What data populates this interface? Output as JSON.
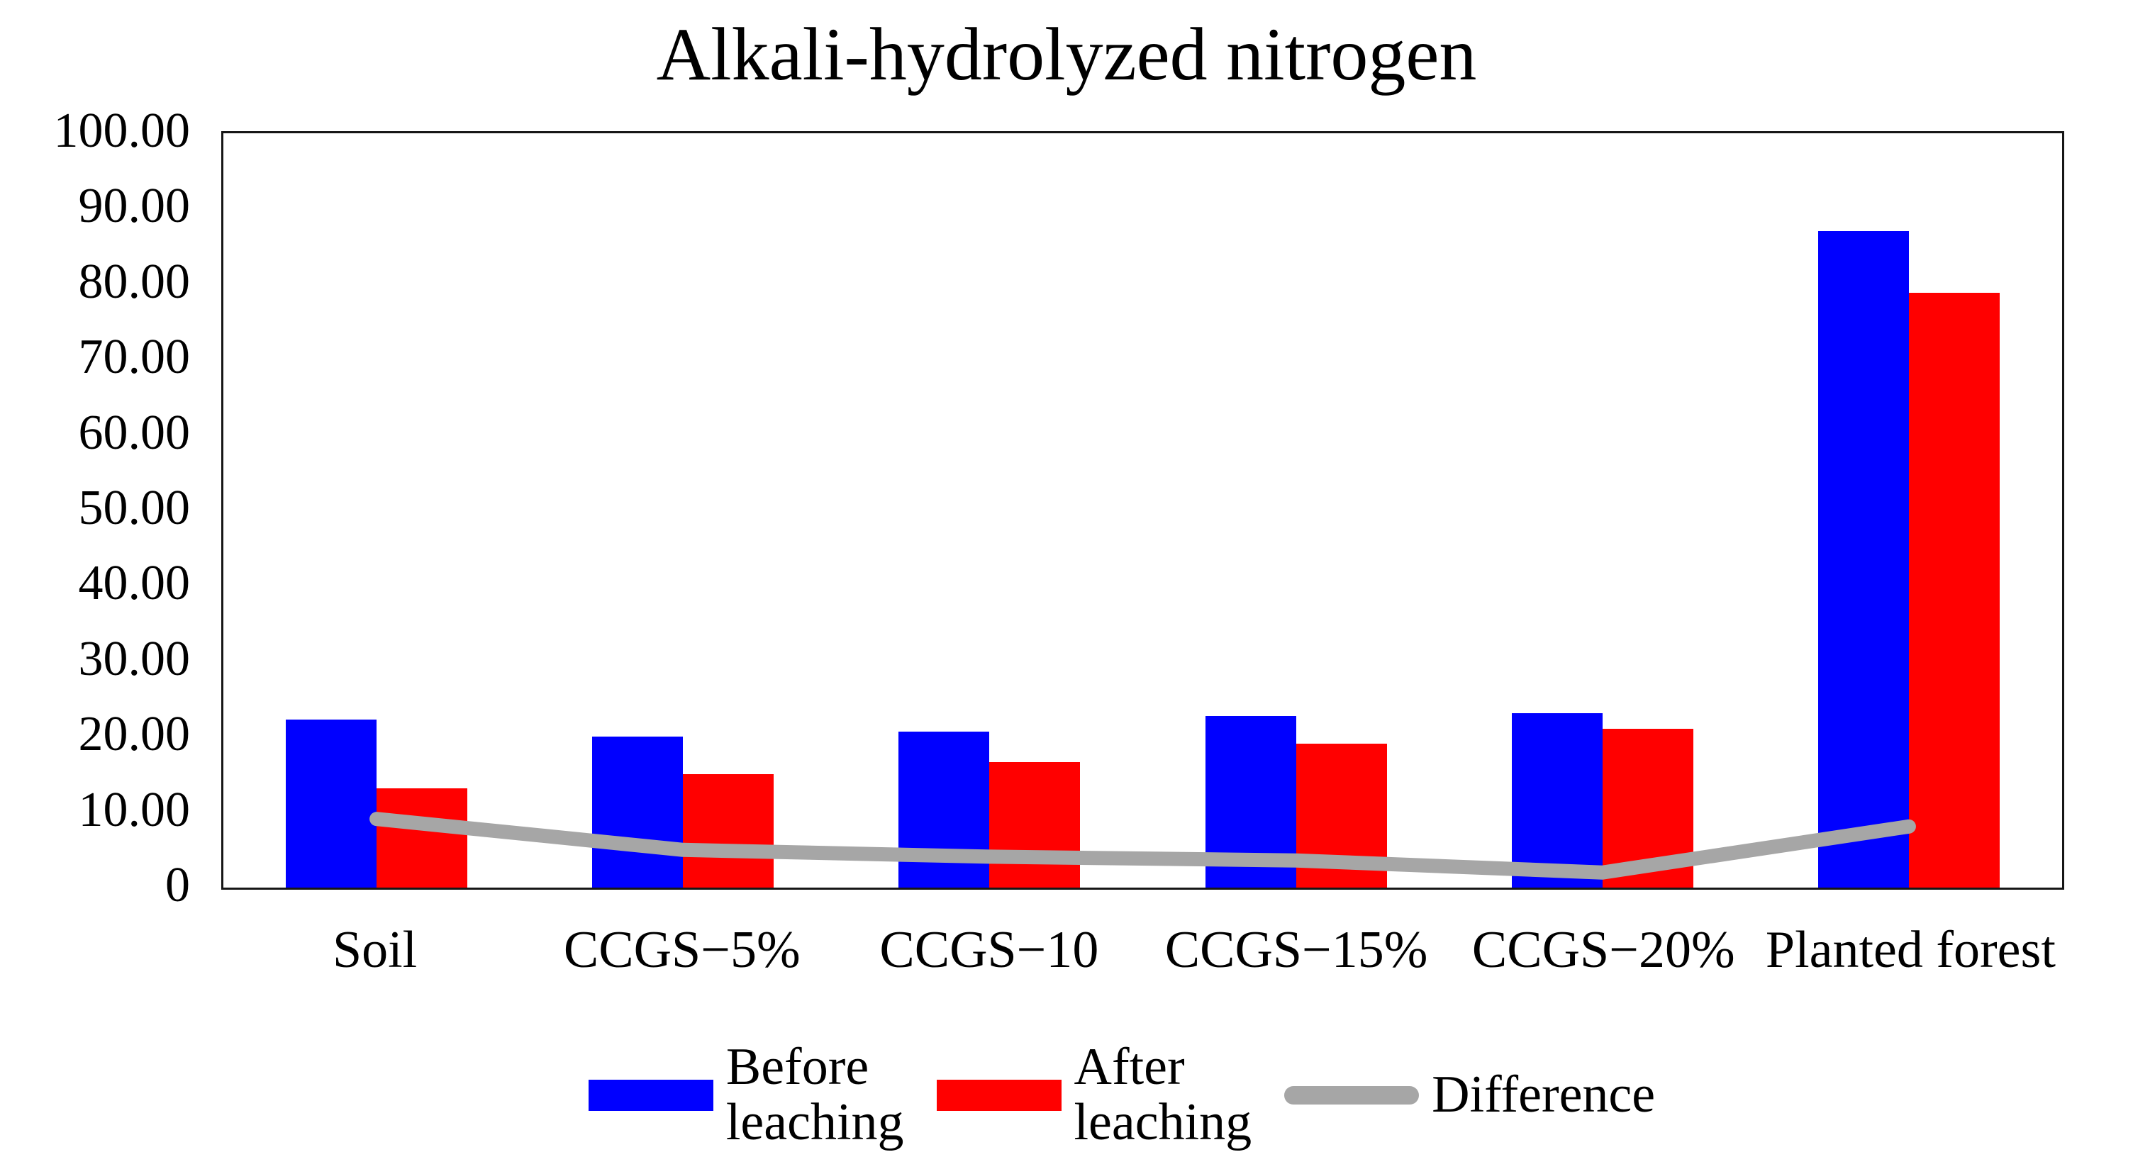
{
  "chart_data": {
    "type": "bar",
    "title": "Alkali-hydrolyzed nitrogen",
    "categories": [
      "Soil",
      "CCGS−5%",
      "CCGS−10",
      "CCGS−15%",
      "CCGS−20%",
      "Planted forest"
    ],
    "series": [
      {
        "key": "before-leaching",
        "name": "Before leaching",
        "type": "bar",
        "color": "#0000FF",
        "values": [
          22.3,
          20.0,
          20.7,
          22.7,
          23.1,
          87.0
        ]
      },
      {
        "key": "after-leaching",
        "name": "After leaching",
        "type": "bar",
        "color": "#FF0000",
        "values": [
          13.2,
          15.0,
          16.6,
          19.1,
          21.1,
          78.9
        ]
      },
      {
        "key": "difference",
        "name": "Difference",
        "type": "line",
        "color": "#A6A6A6",
        "values": [
          9.1,
          5.0,
          4.1,
          3.6,
          2.0,
          8.1
        ]
      }
    ],
    "ylim": [
      0,
      100
    ],
    "y_tick_step": 10,
    "y_tick_labels": [
      "100.00",
      "90.00",
      "80.00",
      "70.00",
      "60.00",
      "50.00",
      "40.00",
      "30.00",
      "20.00",
      "10.00",
      "0"
    ],
    "grid": false,
    "plot_border_color": "#161616",
    "legend_position": "bottom",
    "legend": [
      {
        "key": "before-leaching",
        "label": "Before\nleaching",
        "swatch": "rect",
        "color": "#0000FF"
      },
      {
        "key": "after-leaching",
        "label": "After\nleaching",
        "swatch": "rect",
        "color": "#FF0000"
      },
      {
        "key": "difference",
        "label": "Difference",
        "swatch": "line",
        "color": "#A6A6A6"
      }
    ]
  }
}
